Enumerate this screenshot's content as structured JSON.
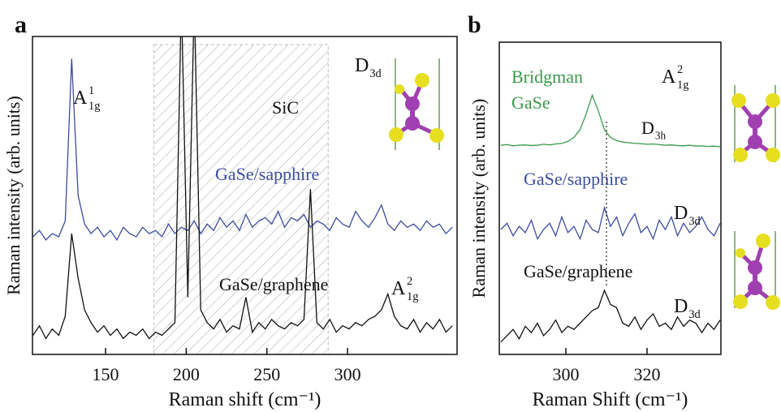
{
  "chart_data": [
    {
      "type": "line",
      "panel_label": "a",
      "ylabel": "Raman intensity (arb. units)",
      "xlabel": "Raman shift (cm⁻¹)",
      "xlim": [
        104.7,
        367.9
      ],
      "ylim": [
        0,
        100
      ],
      "xticks": [
        150,
        200,
        250,
        300
      ],
      "shaded_region": [
        180,
        288
      ],
      "x": [
        105,
        109,
        113,
        117,
        121,
        125,
        129,
        133,
        137,
        141,
        145,
        149,
        153,
        157,
        161,
        165,
        169,
        173,
        177,
        181,
        185,
        189,
        193,
        197,
        201,
        205,
        209,
        213,
        217,
        221,
        225,
        229,
        233,
        237,
        241,
        245,
        249,
        253,
        257,
        261,
        265,
        269,
        273,
        277,
        281,
        285,
        289,
        293,
        297,
        301,
        305,
        309,
        313,
        317,
        321,
        325,
        329,
        333,
        337,
        341,
        345,
        349,
        353,
        357,
        361,
        365
      ],
      "series": [
        {
          "name": "GaSe/sapphire",
          "color": "#3b4ca3",
          "values": [
            37,
            39,
            36,
            38,
            37,
            42,
            93,
            50,
            41,
            38,
            40,
            37,
            39,
            36,
            40,
            38,
            37,
            40,
            38,
            39,
            37,
            41,
            38,
            40,
            39,
            42,
            38,
            41,
            39,
            43,
            40,
            42,
            39,
            44,
            40,
            42,
            43,
            41,
            45,
            40,
            43,
            42,
            44,
            40,
            42,
            41,
            39,
            43,
            41,
            40,
            45,
            42,
            40,
            43,
            47,
            41,
            39,
            42,
            40,
            41,
            39,
            42,
            40,
            41,
            38,
            40
          ]
        },
        {
          "name": "GaSe/graphene",
          "color": "#111111",
          "values": [
            6,
            9,
            5,
            8,
            6,
            12,
            38,
            24,
            14,
            10,
            7,
            9,
            6,
            8,
            5,
            7,
            6,
            8,
            5,
            7,
            6,
            8,
            10,
            112,
            18,
            112,
            14,
            10,
            8,
            11,
            7,
            9,
            8,
            18,
            7,
            10,
            8,
            11,
            9,
            8,
            10,
            9,
            11,
            52,
            10,
            8,
            11,
            7,
            9,
            8,
            10,
            9,
            11,
            12,
            14,
            19,
            12,
            9,
            8,
            11,
            7,
            10,
            8,
            11,
            7,
            9
          ]
        }
      ],
      "annotations": [
        {
          "text": "A",
          "sup": "1",
          "sub": "1g"
        },
        {
          "text": "SiC"
        },
        {
          "text": "D",
          "sub": "3d"
        },
        {
          "text": "A",
          "sup": "2",
          "sub": "1g"
        }
      ]
    },
    {
      "type": "line",
      "panel_label": "b",
      "ylabel": "Raman intensity (arb. units)",
      "xlabel": "Raman Shift (cm⁻¹)",
      "xlim": [
        283.6,
        338.2
      ],
      "ylim": [
        0,
        100
      ],
      "xticks": [
        300,
        320
      ],
      "reference_x": 310,
      "x": [
        284,
        285.5,
        287,
        288.5,
        290,
        291.5,
        293,
        294.5,
        296,
        297.5,
        299,
        300.5,
        302,
        303.5,
        305,
        306.5,
        308,
        309.5,
        311,
        312.5,
        314,
        315.5,
        317,
        318.5,
        320,
        321.5,
        323,
        324.5,
        326,
        327.5,
        329,
        330.5,
        332,
        333.5,
        335,
        336.5,
        338
      ],
      "series": [
        {
          "name": "Bridgman GaSe",
          "color": "#3a9a4a",
          "values": [
            67,
            67.2,
            66.8,
            67,
            67.1,
            66.9,
            67,
            67.3,
            67.1,
            67.4,
            67.6,
            68.2,
            69.5,
            72,
            77,
            83,
            78,
            72,
            69.5,
            68.5,
            68,
            67.8,
            67.6,
            67.5,
            67.3,
            67.4,
            67.2,
            67,
            67.1,
            66.9,
            66.8,
            67,
            66.7,
            66.8,
            66.6,
            66.7,
            66.5
          ]
        },
        {
          "name": "GaSe/sapphire",
          "color": "#3b4ca3",
          "values": [
            40,
            42,
            38,
            41,
            39,
            43,
            37,
            40,
            42,
            38,
            44,
            39,
            41,
            37,
            43,
            40,
            39,
            47,
            41,
            44,
            38,
            42,
            45,
            39,
            41,
            37,
            43,
            40,
            44,
            38,
            42,
            39,
            41,
            44,
            40,
            38,
            42
          ]
        },
        {
          "name": "GaSe/graphene",
          "color": "#111111",
          "values": [
            4,
            6,
            8,
            5,
            9,
            7,
            10,
            6,
            8,
            11,
            7,
            9,
            8,
            10,
            12,
            14,
            15,
            20.5,
            16,
            15,
            10,
            9,
            12,
            8,
            11,
            13,
            9,
            10,
            8,
            12,
            9,
            11,
            10,
            7,
            10,
            8,
            11
          ]
        }
      ],
      "annotations": [
        {
          "text": "A",
          "sup": "2",
          "sub": "1g"
        },
        {
          "text": "D",
          "sub": "3h"
        },
        {
          "text": "D",
          "sub": "3d"
        },
        {
          "text": "D",
          "sub": "3d"
        }
      ]
    }
  ]
}
